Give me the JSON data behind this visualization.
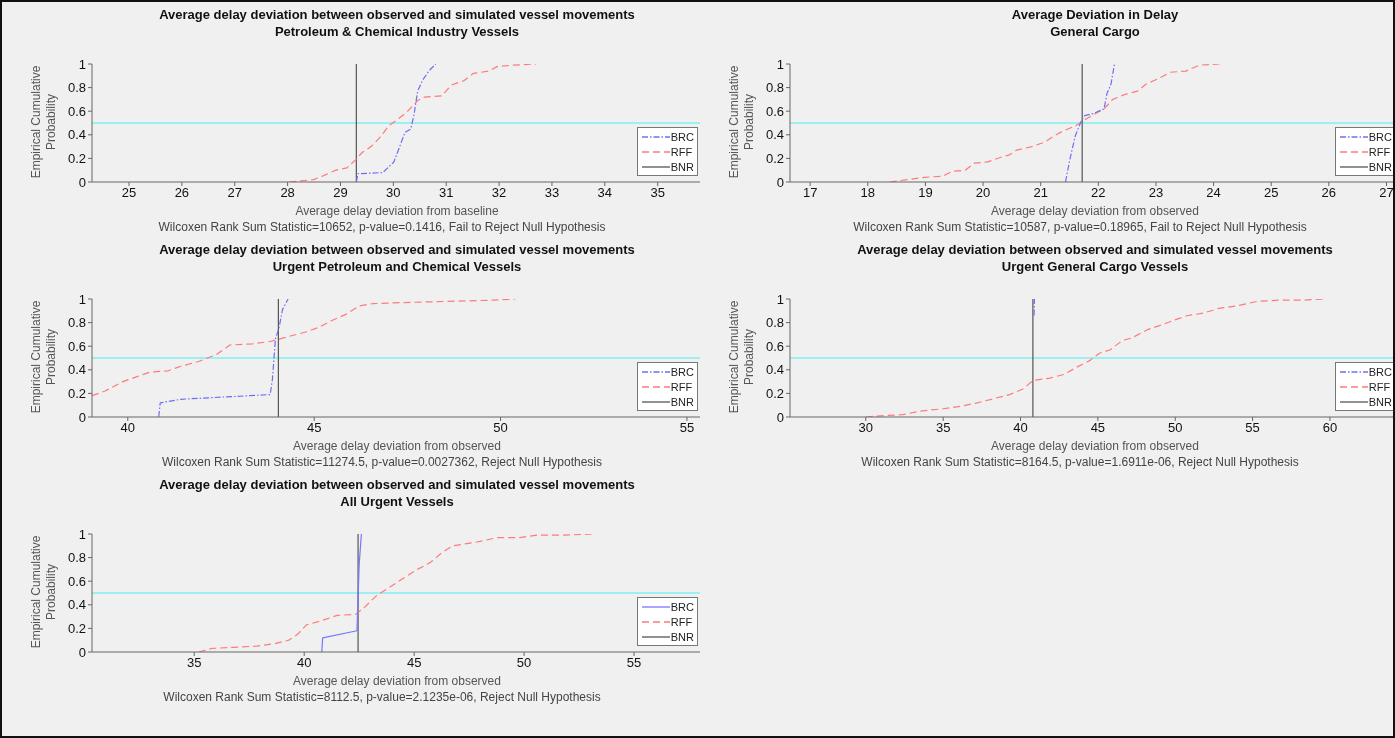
{
  "chart_data": [
    {
      "type": "line",
      "title": "Average delay deviation between observed and simulated vessel movements",
      "subtitle": "Petroleum & Chemical Industry Vessels",
      "xlabel": "Average delay deviation from baseline",
      "ylabel": "Empirical Cumulative Probability",
      "annotations": [
        "Wilcoxen Rank Sum Statistic=10652, p-value=0.1416, Fail to Reject Null Hypothesis"
      ],
      "xlim": [
        24.3,
        35.8
      ],
      "xticks": [
        25,
        26,
        27,
        28,
        29,
        30,
        31,
        32,
        33,
        34,
        35
      ],
      "ylim": [
        0,
        1
      ],
      "yticks": [
        0,
        0.2,
        0.4,
        0.6,
        0.8,
        1
      ],
      "grid": false,
      "legend": "bottom right",
      "marker": "none",
      "ref_lines": [
        {
          "axis": "y",
          "value": 0.5,
          "color": "#80f0f0"
        }
      ],
      "series": [
        {
          "name": "BRC",
          "color": "#6f6ff2",
          "line_style": "dashdot",
          "x": [
            29.3,
            29.33,
            29.8,
            30.01,
            30.12,
            30.22,
            30.33,
            30.39,
            30.46,
            30.55,
            30.67,
            30.8
          ],
          "values": [
            0,
            0.07,
            0.08,
            0.17,
            0.3,
            0.42,
            0.45,
            0.57,
            0.77,
            0.86,
            0.94,
            1
          ]
        },
        {
          "name": "RFF",
          "color": "#ff7a7a",
          "line_style": "dashed",
          "x": [
            28.03,
            28.49,
            28.66,
            28.91,
            29.12,
            29.29,
            29.41,
            29.58,
            29.75,
            29.92,
            30.08,
            30.25,
            30.46,
            30.59,
            30.92,
            31.09,
            31.34,
            31.51,
            31.81,
            31.97,
            32.27,
            32.7
          ],
          "values": [
            0,
            0.02,
            0.05,
            0.1,
            0.12,
            0.19,
            0.25,
            0.3,
            0.38,
            0.48,
            0.53,
            0.59,
            0.69,
            0.72,
            0.73,
            0.82,
            0.86,
            0.92,
            0.94,
            0.98,
            0.99,
            1
          ]
        },
        {
          "name": "BNR",
          "color": "#555555",
          "line_style": "solid",
          "x": [
            29.3,
            29.3
          ],
          "values": [
            0,
            1
          ]
        }
      ]
    },
    {
      "type": "line",
      "title": "Average Deviation in Delay",
      "subtitle": "General Cargo",
      "xlabel": "Average delay deviation from observed",
      "ylabel": "Empirical Cumulative Probability",
      "annotations": [
        "Wilcoxen Rank Sum Statistic=10587, p-value=0.18965, Fail to Reject Null Hypothesis"
      ],
      "xlim": [
        16.65,
        27.2
      ],
      "xticks": [
        17,
        18,
        19,
        20,
        21,
        22,
        23,
        24,
        25,
        26,
        27
      ],
      "ylim": [
        0,
        1
      ],
      "yticks": [
        0,
        0.2,
        0.4,
        0.6,
        0.8,
        1
      ],
      "grid": false,
      "legend": "bottom right",
      "marker": "none",
      "ref_lines": [
        {
          "axis": "y",
          "value": 0.5,
          "color": "#80f0f0"
        }
      ],
      "series": [
        {
          "name": "BRC",
          "color": "#6f6ff2",
          "line_style": "dashdot",
          "x": [
            21.43,
            21.51,
            21.6,
            21.69,
            21.75,
            21.91,
            22.1,
            22.15,
            22.22,
            22.28
          ],
          "values": [
            0,
            0.2,
            0.39,
            0.5,
            0.56,
            0.58,
            0.62,
            0.75,
            0.83,
            1
          ]
        },
        {
          "name": "RFF",
          "color": "#ff7a7a",
          "line_style": "dashed",
          "x": [
            18.38,
            18.68,
            19,
            19.31,
            19.46,
            19.69,
            19.85,
            20.08,
            20.31,
            20.46,
            20.58,
            20.85,
            21.08,
            21.23,
            21.38,
            21.62,
            21.77,
            21.92,
            22.1,
            22.25,
            22.45,
            22.68,
            22.83,
            23.06,
            23.25,
            23.52,
            23.75,
            24.1
          ],
          "values": [
            0,
            0.02,
            0.04,
            0.05,
            0.09,
            0.1,
            0.16,
            0.17,
            0.21,
            0.23,
            0.27,
            0.3,
            0.34,
            0.39,
            0.43,
            0.48,
            0.53,
            0.57,
            0.62,
            0.7,
            0.74,
            0.77,
            0.83,
            0.88,
            0.93,
            0.94,
            0.99,
            1
          ]
        },
        {
          "name": "BNR",
          "color": "#555555",
          "line_style": "solid",
          "x": [
            21.72,
            21.72
          ],
          "values": [
            0,
            1
          ]
        }
      ]
    },
    {
      "type": "line",
      "title": "Average delay deviation between observed and simulated vessel movements",
      "subtitle": "Urgent Petroleum and Chemical Vessels",
      "xlabel": "Average delay deviation from observed",
      "ylabel": "Empirical Cumulative Probability",
      "annotations": [
        "Wilcoxen Rank Sum Statistic=11274.5, p-value=0.0027362, Reject Null Hypothesis"
      ],
      "xlim": [
        39.04,
        55.35
      ],
      "xticks": [
        40,
        45,
        50,
        55
      ],
      "ylim": [
        0,
        1
      ],
      "yticks": [
        0,
        0.2,
        0.4,
        0.6,
        0.8,
        1
      ],
      "grid": false,
      "legend": "bottom right",
      "marker": "none",
      "ref_lines": [
        {
          "axis": "y",
          "value": 0.5,
          "color": "#80f0f0"
        }
      ],
      "series": [
        {
          "name": "BRC",
          "color": "#6f6ff2",
          "line_style": "dashdot",
          "x": [
            40.83,
            40.87,
            41.42,
            42.62,
            43.82,
            43.88,
            43.96,
            44.06,
            44.15,
            44.3
          ],
          "values": [
            0,
            0.12,
            0.15,
            0.17,
            0.19,
            0.32,
            0.66,
            0.76,
            0.91,
            1
          ]
        },
        {
          "name": "RFF",
          "color": "#ff7a7a",
          "line_style": "dashed",
          "x": [
            39.04,
            39.39,
            39.87,
            40.23,
            40.59,
            41.07,
            41.42,
            41.9,
            42.38,
            42.74,
            43.34,
            43.82,
            44.29,
            44.77,
            45.13,
            45.49,
            45.85,
            46.2,
            46.56,
            47.4,
            48.6,
            49.8,
            50.4
          ],
          "values": [
            0.18,
            0.22,
            0.3,
            0.34,
            0.38,
            0.39,
            0.43,
            0.47,
            0.53,
            0.61,
            0.62,
            0.64,
            0.68,
            0.72,
            0.76,
            0.82,
            0.87,
            0.94,
            0.96,
            0.97,
            0.98,
            0.99,
            1
          ]
        },
        {
          "name": "BNR",
          "color": "#555555",
          "line_style": "solid",
          "x": [
            44.04,
            44.04
          ],
          "values": [
            0,
            1
          ]
        }
      ]
    },
    {
      "type": "line",
      "title": "Average delay deviation between observed and simulated vessel movements",
      "subtitle": "Urgent General Cargo Vessels",
      "xlabel": "Average delay deviation from observed",
      "ylabel": "Empirical Cumulative Probability",
      "annotations": [
        "Wilcoxen Rank Sum Statistic=8164.5, p-value=1.6911e-06, Reject Null Hypothesis"
      ],
      "xlim": [
        25.1,
        64.4
      ],
      "xticks": [
        30,
        35,
        40,
        45,
        50,
        55,
        60
      ],
      "ylim": [
        0,
        1
      ],
      "yticks": [
        0,
        0.2,
        0.4,
        0.6,
        0.8,
        1
      ],
      "grid": false,
      "legend": "bottom right",
      "marker": "none",
      "ref_lines": [
        {
          "axis": "y",
          "value": 0.5,
          "color": "#80f0f0"
        }
      ],
      "series": [
        {
          "name": "BRC",
          "color": "#6f6ff2",
          "line_style": "dashdot",
          "x": [
            40.88,
            40.9
          ],
          "values": [
            0.86,
            1
          ]
        },
        {
          "name": "RFF",
          "color": "#ff7a7a",
          "line_style": "dashed",
          "x": [
            30,
            30.95,
            32.4,
            33.5,
            35,
            36.1,
            37.2,
            38.1,
            39.3,
            40.2,
            40.8,
            41.9,
            42.8,
            43.6,
            44.5,
            45.1,
            45.8,
            46.6,
            47.2,
            48.2,
            49.1,
            49.9,
            50.8,
            51.8,
            52.8,
            53.9,
            55.3,
            56.7,
            58.2,
            59.7
          ],
          "values": [
            0,
            0.01,
            0.02,
            0.05,
            0.07,
            0.09,
            0.12,
            0.15,
            0.19,
            0.24,
            0.31,
            0.33,
            0.36,
            0.42,
            0.48,
            0.54,
            0.57,
            0.65,
            0.67,
            0.74,
            0.78,
            0.82,
            0.86,
            0.88,
            0.92,
            0.94,
            0.98,
            0.99,
            0.99,
            1
          ]
        },
        {
          "name": "BNR",
          "color": "#555555",
          "line_style": "solid",
          "x": [
            40.8,
            40.8
          ],
          "values": [
            0,
            1
          ]
        }
      ]
    },
    {
      "type": "line",
      "title": "Average delay deviation between observed and simulated vessel movements",
      "subtitle": "All Urgent Vessels",
      "xlabel": "Average delay deviation from observed",
      "ylabel": "Empirical Cumulative Probability",
      "annotations": [
        "Wilcoxen Rank Sum Statistic=8112.5, p-value=2.1235e-06, Reject Null Hypothesis"
      ],
      "xlim": [
        30.35,
        58
      ],
      "xticks": [
        35,
        40,
        45,
        50,
        55
      ],
      "ylim": [
        0,
        1
      ],
      "yticks": [
        0,
        0.2,
        0.4,
        0.6,
        0.8,
        1
      ],
      "grid": false,
      "legend": "bottom right",
      "marker": "none",
      "ref_lines": [
        {
          "axis": "y",
          "value": 0.5,
          "color": "#80f0f0"
        }
      ],
      "series": [
        {
          "name": "BRC",
          "color": "#7777ff",
          "line_style": "solid",
          "x": [
            40.8,
            40.84,
            42.4,
            42.47,
            42.5,
            42.6
          ],
          "values": [
            0,
            0.12,
            0.18,
            0.57,
            0.74,
            1
          ]
        },
        {
          "name": "RFF",
          "color": "#ff7a7a",
          "line_style": "dashed",
          "x": [
            35.2,
            35.8,
            36.8,
            37.85,
            38.65,
            39.3,
            39.7,
            40.1,
            40.7,
            41.5,
            42.35,
            42.75,
            43.3,
            43.9,
            44.55,
            45.15,
            45.75,
            46.25,
            46.75,
            47.8,
            48.8,
            49.8,
            50.6,
            51.8,
            53.1
          ],
          "values": [
            0,
            0.03,
            0.04,
            0.05,
            0.07,
            0.1,
            0.15,
            0.23,
            0.26,
            0.31,
            0.32,
            0.38,
            0.48,
            0.55,
            0.63,
            0.7,
            0.76,
            0.84,
            0.9,
            0.93,
            0.97,
            0.97,
            0.99,
            0.99,
            1
          ]
        },
        {
          "name": "BNR",
          "color": "#555555",
          "line_style": "solid",
          "x": [
            42.45,
            42.45
          ],
          "values": [
            0,
            1
          ]
        }
      ]
    }
  ]
}
